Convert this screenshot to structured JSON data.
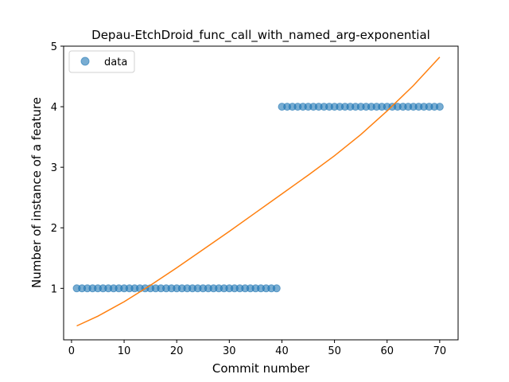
{
  "chart_data": {
    "type": "scatter",
    "title": "Depau-EtchDroid_func_call_with_named_arg-exponential",
    "xlabel": "Commit number",
    "ylabel": "Number of instance of a feature",
    "xlim": [
      -1.5,
      73.5
    ],
    "ylim": [
      0.15,
      5.0
    ],
    "xticks": [
      0,
      10,
      20,
      30,
      40,
      50,
      60,
      70
    ],
    "yticks": [
      1,
      2,
      3,
      4,
      5
    ],
    "grid": false,
    "legend": {
      "placement": "top-left",
      "entries": [
        "data"
      ]
    },
    "series": [
      {
        "name": "data",
        "kind": "scatter",
        "color": "#1f77b4",
        "x": [
          1,
          2,
          3,
          4,
          5,
          6,
          7,
          8,
          9,
          10,
          11,
          12,
          13,
          14,
          15,
          16,
          17,
          18,
          19,
          20,
          21,
          22,
          23,
          24,
          25,
          26,
          27,
          28,
          29,
          30,
          31,
          32,
          33,
          34,
          35,
          36,
          37,
          38,
          39,
          40,
          41,
          42,
          43,
          44,
          45,
          46,
          47,
          48,
          49,
          50,
          51,
          52,
          53,
          54,
          55,
          56,
          57,
          58,
          59,
          60,
          61,
          62,
          63,
          64,
          65,
          66,
          67,
          68,
          69,
          70
        ],
        "y": [
          1,
          1,
          1,
          1,
          1,
          1,
          1,
          1,
          1,
          1,
          1,
          1,
          1,
          1,
          1,
          1,
          1,
          1,
          1,
          1,
          1,
          1,
          1,
          1,
          1,
          1,
          1,
          1,
          1,
          1,
          1,
          1,
          1,
          1,
          1,
          1,
          1,
          1,
          1,
          4,
          4,
          4,
          4,
          4,
          4,
          4,
          4,
          4,
          4,
          4,
          4,
          4,
          4,
          4,
          4,
          4,
          4,
          4,
          4,
          4,
          4,
          4,
          4,
          4,
          4,
          4,
          4,
          4,
          4,
          4
        ]
      },
      {
        "kind": "line",
        "color": "#ff7f0e",
        "x": [
          1,
          5,
          10,
          15,
          20,
          25,
          30,
          35,
          40,
          45,
          50,
          55,
          60,
          65,
          70
        ],
        "y": [
          0.38,
          0.54,
          0.78,
          1.05,
          1.34,
          1.64,
          1.94,
          2.25,
          2.56,
          2.87,
          3.19,
          3.54,
          3.93,
          4.35,
          4.82
        ]
      }
    ]
  }
}
